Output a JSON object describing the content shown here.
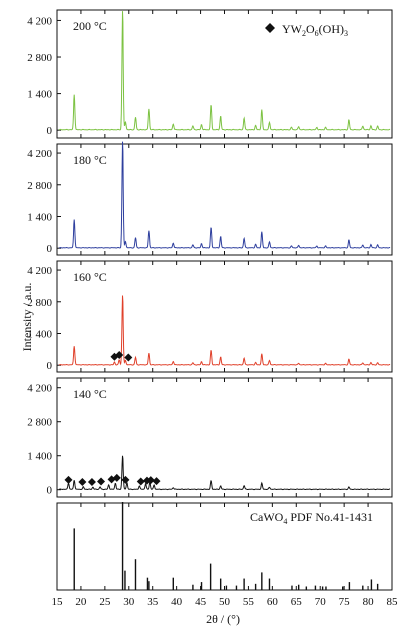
{
  "chart_data": {
    "type": "line",
    "xlabel": "2θ / (°)",
    "ylabel": "Intensity / a.u.",
    "xlim": [
      15,
      85
    ],
    "x_ticks": [
      15,
      20,
      25,
      30,
      35,
      40,
      45,
      50,
      55,
      60,
      65,
      70,
      75,
      80,
      85
    ],
    "ylim": [
      -300,
      4600
    ],
    "y_ticks": [
      0,
      1400,
      2800,
      4200
    ],
    "y_tick_labels": [
      "0",
      "1 400",
      "2 800",
      "4 200"
    ],
    "legend_text": "YW2O6(OH)3",
    "panels": [
      {
        "label": "200 °C",
        "color": "#7cc242",
        "peaks": [
          [
            18.6,
            1350
          ],
          [
            28.7,
            4600
          ],
          [
            29.3,
            300
          ],
          [
            31.4,
            480
          ],
          [
            34.2,
            800
          ],
          [
            39.3,
            220
          ],
          [
            43.4,
            140
          ],
          [
            45.2,
            200
          ],
          [
            47.2,
            950
          ],
          [
            49.2,
            520
          ],
          [
            54.1,
            450
          ],
          [
            56.5,
            160
          ],
          [
            57.8,
            760
          ],
          [
            59.4,
            280
          ],
          [
            64.0,
            90
          ],
          [
            65.5,
            120
          ],
          [
            69.3,
            90
          ],
          [
            71.1,
            90
          ],
          [
            76.0,
            380
          ],
          [
            78.9,
            140
          ],
          [
            80.6,
            150
          ],
          [
            82.0,
            140
          ]
        ],
        "yw_markers": []
      },
      {
        "label": "180 °C",
        "color": "#2e3f9e",
        "peaks": [
          [
            18.6,
            1250
          ],
          [
            28.7,
            4750
          ],
          [
            29.3,
            280
          ],
          [
            31.4,
            450
          ],
          [
            34.2,
            760
          ],
          [
            39.3,
            210
          ],
          [
            43.4,
            130
          ],
          [
            45.2,
            190
          ],
          [
            47.2,
            900
          ],
          [
            49.2,
            500
          ],
          [
            54.1,
            420
          ],
          [
            56.5,
            150
          ],
          [
            57.8,
            700
          ],
          [
            59.4,
            260
          ],
          [
            64.0,
            80
          ],
          [
            65.5,
            110
          ],
          [
            69.3,
            80
          ],
          [
            71.1,
            80
          ],
          [
            76.0,
            350
          ],
          [
            78.9,
            130
          ],
          [
            80.6,
            140
          ],
          [
            82.0,
            130
          ]
        ],
        "yw_markers": []
      },
      {
        "label": "160 °C",
        "color": "#e0402a",
        "peaks": [
          [
            18.6,
            830
          ],
          [
            27.0,
            120
          ],
          [
            28.0,
            220
          ],
          [
            28.7,
            3100
          ],
          [
            29.3,
            200
          ],
          [
            31.4,
            330
          ],
          [
            34.2,
            520
          ],
          [
            39.3,
            150
          ],
          [
            43.4,
            90
          ],
          [
            45.2,
            140
          ],
          [
            47.2,
            640
          ],
          [
            49.2,
            350
          ],
          [
            54.1,
            300
          ],
          [
            56.5,
            100
          ],
          [
            57.8,
            480
          ],
          [
            59.4,
            190
          ],
          [
            65.5,
            70
          ],
          [
            71.1,
            60
          ],
          [
            76.0,
            250
          ],
          [
            78.9,
            90
          ],
          [
            80.6,
            100
          ],
          [
            82.0,
            90
          ]
        ],
        "yw_markers": [
          [
            27.0,
            150
          ],
          [
            28.0,
            230
          ],
          [
            29.9,
            120
          ]
        ]
      },
      {
        "label": "140 °C",
        "color": "#111111",
        "peaks": [
          [
            17.4,
            260
          ],
          [
            18.6,
            380
          ],
          [
            20.5,
            100
          ],
          [
            22.5,
            90
          ],
          [
            24.0,
            100
          ],
          [
            25.8,
            180
          ],
          [
            27.2,
            250
          ],
          [
            28.7,
            1400
          ],
          [
            29.6,
            280
          ],
          [
            32.2,
            140
          ],
          [
            33.5,
            230
          ],
          [
            34.4,
            300
          ],
          [
            35.3,
            180
          ],
          [
            39.3,
            70
          ],
          [
            47.2,
            350
          ],
          [
            49.2,
            140
          ],
          [
            54.1,
            150
          ],
          [
            57.8,
            250
          ],
          [
            59.4,
            80
          ],
          [
            76.0,
            90
          ]
        ],
        "yw_markers": [
          [
            17.4,
            200
          ],
          [
            20.3,
            110
          ],
          [
            22.3,
            110
          ],
          [
            24.2,
            130
          ],
          [
            26.4,
            220
          ],
          [
            27.5,
            280
          ],
          [
            29.3,
            200
          ],
          [
            32.5,
            130
          ],
          [
            33.8,
            170
          ],
          [
            34.6,
            190
          ],
          [
            35.8,
            150
          ]
        ]
      }
    ],
    "reference": {
      "label": "CaWO4 PDF No.41-1431",
      "lines": [
        [
          18.6,
          0.7
        ],
        [
          28.7,
          1.0
        ],
        [
          29.2,
          0.22
        ],
        [
          31.4,
          0.35
        ],
        [
          33.9,
          0.14
        ],
        [
          34.2,
          0.1
        ],
        [
          39.3,
          0.14
        ],
        [
          43.4,
          0.06
        ],
        [
          45.2,
          0.09
        ],
        [
          47.1,
          0.3
        ],
        [
          49.2,
          0.13
        ],
        [
          50.4,
          0.05
        ],
        [
          52.5,
          0.05
        ],
        [
          54.1,
          0.13
        ],
        [
          56.5,
          0.07
        ],
        [
          57.8,
          0.2
        ],
        [
          59.4,
          0.13
        ],
        [
          64.1,
          0.05
        ],
        [
          65.5,
          0.06
        ],
        [
          67.1,
          0.04
        ],
        [
          69.0,
          0.05
        ],
        [
          70.5,
          0.04
        ],
        [
          71.2,
          0.04
        ],
        [
          74.7,
          0.04
        ],
        [
          76.1,
          0.09
        ],
        [
          78.9,
          0.05
        ],
        [
          80.7,
          0.12
        ],
        [
          82.0,
          0.07
        ]
      ]
    }
  }
}
